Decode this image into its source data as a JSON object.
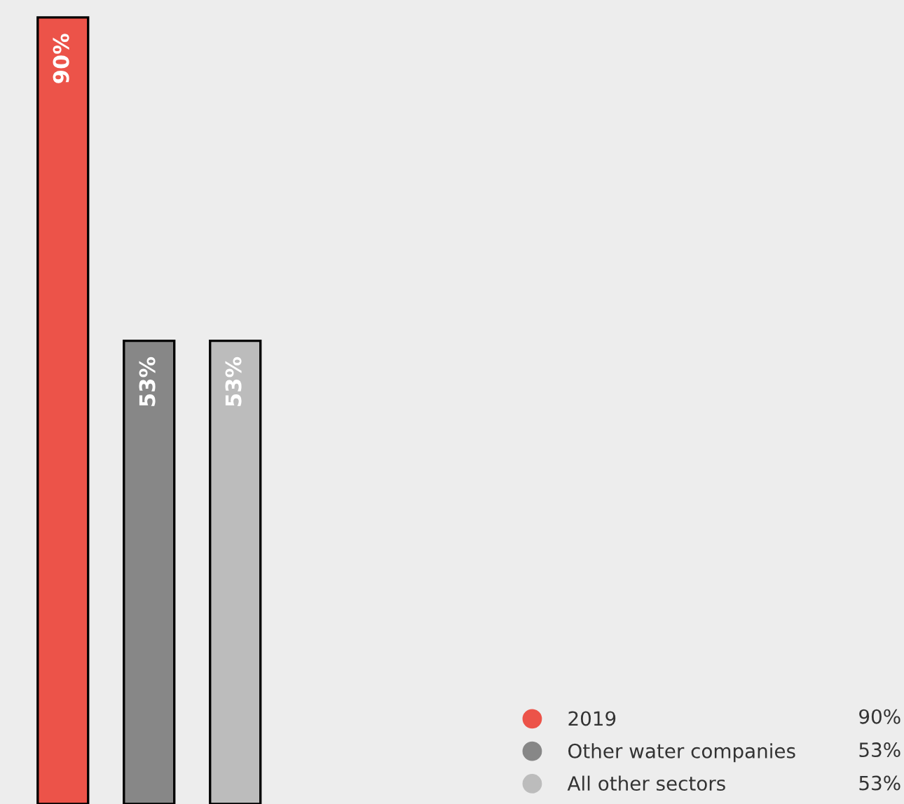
{
  "chart_data": {
    "type": "bar",
    "stacked": true,
    "categories": [
      null,
      null,
      null
    ],
    "series": [
      {
        "name": "2019",
        "color": "#ec5349",
        "values": [
          90,
          null,
          null
        ],
        "value_labels": [
          "90%",
          null,
          null
        ]
      },
      {
        "name": "Other water companies",
        "color": "#878787",
        "values": [
          null,
          53,
          null
        ],
        "value_labels": [
          null,
          "53%",
          null
        ]
      },
      {
        "name": "All other sectors",
        "color": "#bcbcbc",
        "values": [
          null,
          null,
          53
        ],
        "value_labels": [
          null,
          null,
          "53%"
        ]
      }
    ],
    "ylim": [
      0,
      92
    ],
    "legend": "bottom right"
  }
}
